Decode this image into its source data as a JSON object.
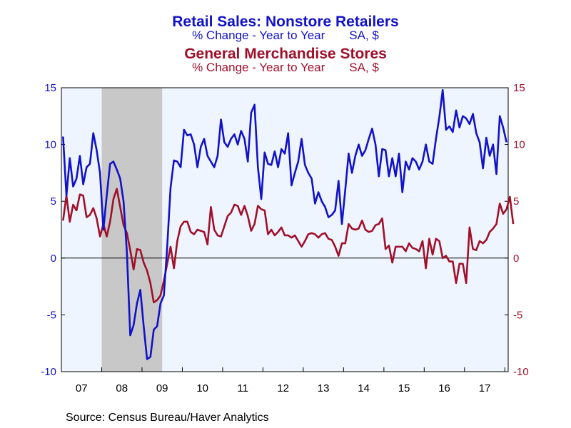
{
  "colors": {
    "series1": "#1212c8",
    "series2": "#a0102a",
    "plot_bg": "#eef5ff",
    "recession": "#c8c8c8"
  },
  "chart_data": {
    "type": "line",
    "title": "Retail Sales: Nonstore Retailers",
    "title_sub_left": "% Change - Year to Year",
    "title_sub_right": "SA, $",
    "title2": "General Merchandise Stores",
    "title2_sub_left": "% Change - Year to Year",
    "title2_sub_right": "SA, $",
    "source": "Source:  Census Bureau/Haver Analytics",
    "ylim": [
      -10,
      15
    ],
    "yticks": [
      15,
      10,
      5,
      0,
      -5,
      -10
    ],
    "year_labels": [
      "07",
      "08",
      "09",
      "10",
      "11",
      "12",
      "13",
      "14",
      "15",
      "16",
      "17"
    ],
    "x_start": "2007-01",
    "recession": {
      "start": "2008-01",
      "end": "2009-06"
    },
    "grid": false,
    "series": [
      {
        "name": "Retail Sales: Nonstore Retailers",
        "color": "#1212c8",
        "values": [
          10.7,
          5.5,
          8.8,
          6.3,
          7.0,
          9.0,
          6.5,
          8.0,
          8.3,
          11.0,
          9.5,
          7.5,
          2.5,
          5.5,
          8.3,
          8.5,
          7.8,
          7.0,
          5.0,
          0.5,
          -6.8,
          -5.9,
          -4.0,
          -2.8,
          -6.0,
          -8.9,
          -8.7,
          -6.3,
          -6.0,
          -4.0,
          -3.3,
          1.0,
          6.2,
          8.6,
          8.5,
          8.0,
          11.3,
          10.8,
          10.9,
          10.0,
          8.0,
          9.8,
          10.5,
          9.0,
          8.5,
          8.0,
          9.0,
          12.2,
          10.2,
          9.8,
          10.5,
          10.9,
          10.0,
          11.2,
          10.5,
          8.5,
          12.8,
          13.5,
          8.0,
          5.2,
          9.3,
          8.3,
          8.2,
          9.4,
          8.0,
          9.6,
          9.2,
          11.0,
          6.4,
          7.5,
          8.5,
          10.5,
          8.2,
          7.5,
          7.0,
          4.8,
          5.8,
          5.0,
          4.5,
          3.6,
          3.8,
          4.2,
          6.8,
          3.0,
          6.0,
          9.2,
          7.5,
          9.0,
          10.0,
          9.0,
          9.5,
          10.5,
          11.4,
          10.0,
          7.2,
          9.6,
          9.5,
          7.2,
          8.8,
          7.2,
          9.2,
          5.8,
          8.5,
          7.8,
          8.8,
          8.5,
          7.8,
          8.5,
          10.0,
          8.5,
          8.3,
          10.5,
          12.4,
          14.8,
          11.3,
          11.6,
          11.1,
          13.0,
          11.5,
          12.5,
          12.3,
          11.8,
          12.7,
          11.0,
          10.2,
          7.9,
          10.6,
          9.0,
          10.0,
          7.4,
          12.5,
          11.5,
          10.2
        ]
      },
      {
        "name": "General Merchandise Stores",
        "color": "#a0102a",
        "values": [
          3.3,
          5.5,
          3.2,
          4.7,
          4.2,
          5.6,
          5.5,
          3.6,
          3.8,
          4.4,
          3.5,
          1.9,
          3.0,
          1.9,
          3.2,
          5.2,
          6.1,
          4.5,
          2.9,
          2.2,
          0.7,
          -1.0,
          0.8,
          0.7,
          -0.4,
          -1.1,
          -2.2,
          -3.9,
          -3.7,
          -3.3,
          -2.0,
          -0.5,
          1.0,
          -0.9,
          1.5,
          2.8,
          3.2,
          3.2,
          2.3,
          2.1,
          2.5,
          2.4,
          2.3,
          1.2,
          4.5,
          2.5,
          2.0,
          1.9,
          2.8,
          3.7,
          4.0,
          4.7,
          4.6,
          3.8,
          4.6,
          3.7,
          2.4,
          3.0,
          4.6,
          4.3,
          4.2,
          2.1,
          2.5,
          2.0,
          2.3,
          2.7,
          2.0,
          2.0,
          1.8,
          2.0,
          1.5,
          1.0,
          1.5,
          2.1,
          2.2,
          2.1,
          1.8,
          2.1,
          2.2,
          1.7,
          1.6,
          1.0,
          0.2,
          1.3,
          1.3,
          3.0,
          2.6,
          2.5,
          2.6,
          3.3,
          2.5,
          2.3,
          2.4,
          2.9,
          3.0,
          3.5,
          0.8,
          1.1,
          -0.4,
          1.0,
          1.0,
          1.0,
          0.6,
          1.3,
          0.9,
          0.8,
          0.6,
          1.5,
          -0.9,
          1.7,
          0.3,
          1.7,
          1.5,
          0.0,
          0.2,
          -0.3,
          -0.3,
          -2.2,
          -0.5,
          -0.5,
          -2.2,
          2.7,
          0.8,
          0.7,
          1.5,
          1.3,
          1.6,
          2.3,
          2.6,
          3.0,
          4.8,
          3.9,
          4.3,
          5.4,
          3.0
        ]
      }
    ]
  }
}
